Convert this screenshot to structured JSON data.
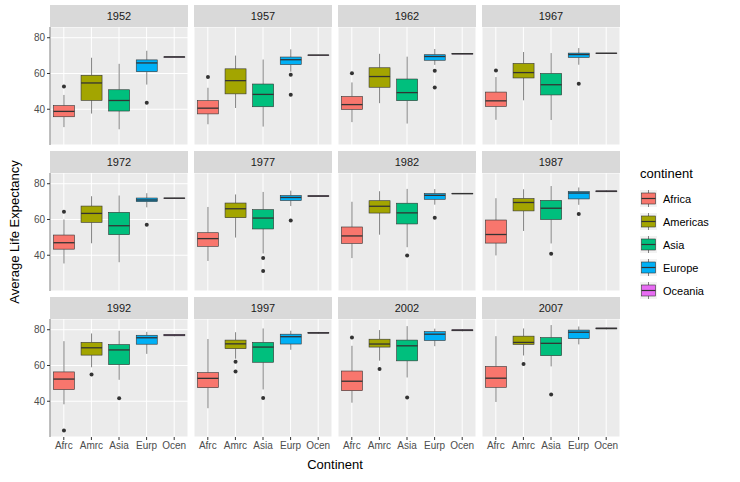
{
  "chart_data": {
    "type": "boxplot",
    "x_label": "Continent",
    "y_label": "Average Life Expectancy",
    "legend_title": "continent",
    "legend": "right",
    "grid": true,
    "categories": [
      "Afrc",
      "Amrc",
      "Asia",
      "Eurp",
      "Ocen"
    ],
    "series": [
      {
        "name": "Africa",
        "color": "#F8766D"
      },
      {
        "name": "Americas",
        "color": "#A3A500"
      },
      {
        "name": "Asia",
        "color": "#00BF7D"
      },
      {
        "name": "Europe",
        "color": "#00B0F6"
      },
      {
        "name": "Oceania",
        "color": "#E76BF3"
      }
    ],
    "ylim": [
      20,
      86
    ],
    "yticks": [
      40,
      60,
      80
    ],
    "panels": [
      {
        "title": "1952",
        "boxes": [
          {
            "low": 30.0,
            "q1": 35.8,
            "median": 38.8,
            "q3": 42.0,
            "high": 48.0,
            "outliers": [
              52.7
            ]
          },
          {
            "low": 37.6,
            "q1": 45.0,
            "median": 54.7,
            "q3": 59.0,
            "high": 68.8,
            "outliers": []
          },
          {
            "low": 28.8,
            "q1": 39.0,
            "median": 44.9,
            "q3": 50.9,
            "high": 65.4,
            "outliers": []
          },
          {
            "low": 53.8,
            "q1": 61.0,
            "median": 65.9,
            "q3": 67.6,
            "high": 72.7,
            "outliers": [
              43.6
            ]
          },
          {
            "low": 69.1,
            "q1": 69.2,
            "median": 69.3,
            "q3": 69.3,
            "high": 69.4,
            "outliers": []
          }
        ]
      },
      {
        "title": "1957",
        "boxes": [
          {
            "low": 31.6,
            "q1": 37.4,
            "median": 40.6,
            "q3": 44.8,
            "high": 52.0,
            "outliers": [
              58.1
            ]
          },
          {
            "low": 40.7,
            "q1": 48.6,
            "median": 56.0,
            "q3": 62.6,
            "high": 70.0,
            "outliers": []
          },
          {
            "low": 30.3,
            "q1": 41.4,
            "median": 48.3,
            "q3": 54.1,
            "high": 67.8,
            "outliers": []
          },
          {
            "low": 61.0,
            "q1": 65.0,
            "median": 67.7,
            "q3": 69.2,
            "high": 73.5,
            "outliers": [
              59.3,
              48.1
            ]
          },
          {
            "low": 70.2,
            "q1": 70.3,
            "median": 70.3,
            "q3": 70.3,
            "high": 70.4,
            "outliers": []
          }
        ]
      },
      {
        "title": "1962",
        "boxes": [
          {
            "low": 32.8,
            "q1": 39.9,
            "median": 42.6,
            "q3": 47.1,
            "high": 55.0,
            "outliers": [
              60.2
            ]
          },
          {
            "low": 43.4,
            "q1": 52.3,
            "median": 58.3,
            "q3": 63.2,
            "high": 71.0,
            "outliers": []
          },
          {
            "low": 32.0,
            "q1": 44.8,
            "median": 49.3,
            "q3": 56.9,
            "high": 69.4,
            "outliers": []
          },
          {
            "low": 64.8,
            "q1": 67.4,
            "median": 69.5,
            "q3": 70.5,
            "high": 73.7,
            "outliers": [
              61.5,
              52.1
            ]
          },
          {
            "low": 70.9,
            "q1": 71.0,
            "median": 71.1,
            "q3": 71.1,
            "high": 71.2,
            "outliers": []
          }
        ]
      },
      {
        "title": "1967",
        "boxes": [
          {
            "low": 34.1,
            "q1": 41.6,
            "median": 44.7,
            "q3": 49.6,
            "high": 58.0,
            "outliers": [
              61.6
            ]
          },
          {
            "low": 45.0,
            "q1": 57.5,
            "median": 60.5,
            "q3": 65.6,
            "high": 72.0,
            "outliers": []
          },
          {
            "low": 34.0,
            "q1": 48.0,
            "median": 53.7,
            "q3": 60.0,
            "high": 71.4,
            "outliers": []
          },
          {
            "low": 64.9,
            "q1": 69.0,
            "median": 70.6,
            "q3": 71.4,
            "high": 74.2,
            "outliers": [
              54.3
            ]
          },
          {
            "low": 71.1,
            "q1": 71.2,
            "median": 71.3,
            "q3": 71.4,
            "high": 71.5,
            "outliers": []
          }
        ]
      },
      {
        "title": "1972",
        "boxes": [
          {
            "low": 35.4,
            "q1": 43.4,
            "median": 47.0,
            "q3": 51.3,
            "high": 60.0,
            "outliers": [
              64.3
            ]
          },
          {
            "low": 46.7,
            "q1": 58.4,
            "median": 63.4,
            "q3": 67.5,
            "high": 73.0,
            "outliers": []
          },
          {
            "low": 36.1,
            "q1": 51.5,
            "median": 56.5,
            "q3": 64.0,
            "high": 73.4,
            "outliers": []
          },
          {
            "low": 66.8,
            "q1": 70.0,
            "median": 70.9,
            "q3": 72.0,
            "high": 74.7,
            "outliers": [
              57.0
            ]
          },
          {
            "low": 71.8,
            "q1": 71.9,
            "median": 71.9,
            "q3": 72.0,
            "high": 72.1,
            "outliers": []
          }
        ]
      },
      {
        "title": "1977",
        "boxes": [
          {
            "low": 36.8,
            "q1": 45.0,
            "median": 49.3,
            "q3": 52.6,
            "high": 67.0,
            "outliers": []
          },
          {
            "low": 49.9,
            "q1": 61.0,
            "median": 66.0,
            "q3": 69.2,
            "high": 74.0,
            "outliers": []
          },
          {
            "low": 41.0,
            "q1": 54.7,
            "median": 60.8,
            "q3": 65.5,
            "high": 75.4,
            "outliers": [
              38.4,
              31.2
            ]
          },
          {
            "low": 67.5,
            "q1": 70.6,
            "median": 72.3,
            "q3": 73.4,
            "high": 76.1,
            "outliers": [
              59.5
            ]
          },
          {
            "low": 72.8,
            "q1": 72.9,
            "median": 73.1,
            "q3": 73.3,
            "high": 73.5,
            "outliers": []
          }
        ]
      },
      {
        "title": "1982",
        "boxes": [
          {
            "low": 38.4,
            "q1": 46.6,
            "median": 50.8,
            "q3": 55.8,
            "high": 69.9,
            "outliers": []
          },
          {
            "low": 51.5,
            "q1": 63.6,
            "median": 67.4,
            "q3": 70.5,
            "high": 75.8,
            "outliers": []
          },
          {
            "low": 44.5,
            "q1": 57.5,
            "median": 63.7,
            "q3": 69.1,
            "high": 77.1,
            "outliers": [
              39.9
            ]
          },
          {
            "low": 68.3,
            "q1": 71.3,
            "median": 73.5,
            "q3": 74.5,
            "high": 77.0,
            "outliers": [
              61.0
            ]
          },
          {
            "low": 74.3,
            "q1": 74.4,
            "median": 74.5,
            "q3": 74.6,
            "high": 74.7,
            "outliers": []
          }
        ]
      },
      {
        "title": "1987",
        "boxes": [
          {
            "low": 39.9,
            "q1": 46.8,
            "median": 51.6,
            "q3": 59.7,
            "high": 71.9,
            "outliers": []
          },
          {
            "low": 53.6,
            "q1": 64.8,
            "median": 69.5,
            "q3": 71.7,
            "high": 76.9,
            "outliers": []
          },
          {
            "low": 46.6,
            "q1": 60.0,
            "median": 66.3,
            "q3": 70.7,
            "high": 78.7,
            "outliers": [
              40.8
            ]
          },
          {
            "low": 68.2,
            "q1": 71.5,
            "median": 74.8,
            "q3": 75.6,
            "high": 77.9,
            "outliers": [
              63.1
            ]
          },
          {
            "low": 75.3,
            "q1": 75.5,
            "median": 75.8,
            "q3": 76.0,
            "high": 76.3,
            "outliers": []
          }
        ]
      },
      {
        "title": "1992",
        "boxes": [
          {
            "low": 38.3,
            "q1": 46.5,
            "median": 52.4,
            "q3": 56.4,
            "high": 73.6,
            "outliers": [
              23.6
            ]
          },
          {
            "low": 59.0,
            "q1": 65.8,
            "median": 69.9,
            "q3": 72.9,
            "high": 77.9,
            "outliers": [
              55.0
            ]
          },
          {
            "low": 52.0,
            "q1": 60.5,
            "median": 68.7,
            "q3": 71.7,
            "high": 79.4,
            "outliers": [
              41.7
            ]
          },
          {
            "low": 66.5,
            "q1": 71.9,
            "median": 75.5,
            "q3": 76.9,
            "high": 78.8,
            "outliers": []
          },
          {
            "low": 76.3,
            "q1": 76.6,
            "median": 77.0,
            "q3": 77.3,
            "high": 77.6,
            "outliers": []
          }
        ]
      },
      {
        "title": "1997",
        "boxes": [
          {
            "low": 36.1,
            "q1": 47.6,
            "median": 52.8,
            "q3": 56.0,
            "high": 74.8,
            "outliers": []
          },
          {
            "low": 63.8,
            "q1": 69.4,
            "median": 72.1,
            "q3": 74.2,
            "high": 78.6,
            "outliers": [
              62.1,
              56.7
            ]
          },
          {
            "low": 46.6,
            "q1": 61.8,
            "median": 70.3,
            "q3": 72.9,
            "high": 80.7,
            "outliers": [
              41.8
            ]
          },
          {
            "low": 68.8,
            "q1": 72.0,
            "median": 76.1,
            "q3": 77.5,
            "high": 79.4,
            "outliers": []
          },
          {
            "low": 77.8,
            "q1": 78.1,
            "median": 78.2,
            "q3": 78.5,
            "high": 78.8,
            "outliers": []
          }
        ]
      },
      {
        "title": "2002",
        "boxes": [
          {
            "low": 39.2,
            "q1": 45.9,
            "median": 51.2,
            "q3": 56.9,
            "high": 71.0,
            "outliers": [
              75.7
            ]
          },
          {
            "low": 62.7,
            "q1": 70.3,
            "median": 72.0,
            "q3": 74.7,
            "high": 79.8,
            "outliers": [
              58.1
            ]
          },
          {
            "low": 53.3,
            "q1": 62.6,
            "median": 71.0,
            "q3": 74.2,
            "high": 82.0,
            "outliers": [
              42.1
            ]
          },
          {
            "low": 70.8,
            "q1": 74.0,
            "median": 77.5,
            "q3": 78.9,
            "high": 80.6,
            "outliers": []
          },
          {
            "low": 79.1,
            "q1": 79.4,
            "median": 79.7,
            "q3": 80.0,
            "high": 80.4,
            "outliers": []
          }
        ]
      },
      {
        "title": "2007",
        "boxes": [
          {
            "low": 39.6,
            "q1": 47.8,
            "median": 52.9,
            "q3": 59.4,
            "high": 76.4,
            "outliers": []
          },
          {
            "low": 65.6,
            "q1": 71.8,
            "median": 72.9,
            "q3": 76.4,
            "high": 80.7,
            "outliers": [
              60.9
            ]
          },
          {
            "low": 59.5,
            "q1": 65.5,
            "median": 72.4,
            "q3": 75.6,
            "high": 82.6,
            "outliers": [
              43.8
            ]
          },
          {
            "low": 71.8,
            "q1": 75.0,
            "median": 78.6,
            "q3": 79.8,
            "high": 81.8,
            "outliers": []
          },
          {
            "low": 80.2,
            "q1": 80.5,
            "median": 80.7,
            "q3": 81.0,
            "high": 81.2,
            "outliers": []
          }
        ]
      }
    ]
  }
}
